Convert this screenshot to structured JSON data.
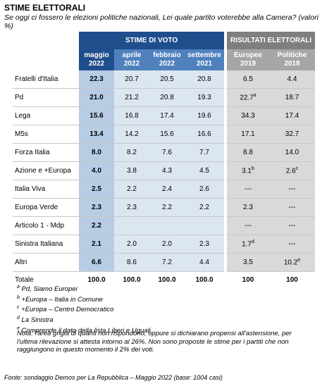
{
  "header": {
    "title": "STIME ELETTORALI",
    "subtitle": "Se oggi ci fossero le elezioni politiche nazionali, Lei quale partito voterebbe alla Camera? (valori %)"
  },
  "table": {
    "groups": [
      "STIME DI VOTO",
      "RISULTATI ELETTORALI"
    ],
    "columns": [
      {
        "month": "maggio",
        "year": "2022"
      },
      {
        "month": "aprile",
        "year": "2022"
      },
      {
        "month": "febbraio",
        "year": "2022"
      },
      {
        "month": "settembre",
        "year": "2021"
      },
      {
        "month": "Europee",
        "year": "2019"
      },
      {
        "month": "Politiche",
        "year": "2018"
      }
    ],
    "rows": [
      [
        "Fratelli d'Italia",
        "22.3",
        "20.7",
        "20.5",
        "20.8",
        "6.5",
        "4.4"
      ],
      [
        "Pd",
        "21.0",
        "21.2",
        "20.8",
        "19.3",
        {
          "text": "22.7",
          "sup": "a"
        },
        "18.7"
      ],
      [
        "Lega",
        "15.6",
        "16.8",
        "17.4",
        "19.6",
        "34.3",
        "17.4"
      ],
      [
        "M5s",
        "13.4",
        "14.2",
        "15.6",
        "16.6",
        "17.1",
        "32.7"
      ],
      [
        "Forza Italia",
        "8.0",
        "8.2",
        "7.6",
        "7.7",
        "8.8",
        "14.0"
      ],
      [
        "Azione e +Europa",
        "4.0",
        "3.8",
        "4.3",
        "4.5",
        {
          "text": "3.1",
          "sup": "b"
        },
        {
          "text": "2.6",
          "sup": "c"
        }
      ],
      [
        "Italia Viva",
        "2.5",
        "2.2",
        "2.4",
        "2.6",
        "---",
        "---"
      ],
      [
        "Europa Verde",
        "2.3",
        "2.3",
        "2.2",
        "2.2",
        "2.3",
        "---"
      ],
      [
        "Articolo 1 - Mdp",
        "2.2",
        "",
        "",
        "",
        "---",
        "---"
      ],
      [
        "Sinistra Italiana",
        "2.1",
        "2.0",
        "2.0",
        "2.3",
        {
          "text": "1.7",
          "sup": "d"
        },
        "---"
      ],
      [
        "Altri",
        "6.6",
        "8.6",
        "7.2",
        "4.4",
        "3.5",
        {
          "text": "10.2",
          "sup": "e"
        }
      ]
    ],
    "total": [
      "Totale",
      "100.0",
      "100.0",
      "100.0",
      "100.0",
      "100",
      "100"
    ]
  },
  "footnotes": [
    {
      "sup": "a",
      "text": "Pd, Siamo Europei"
    },
    {
      "sup": "b",
      "text": "+Europa – Italia in Comune"
    },
    {
      "sup": "c",
      "text": "+Europa – Centro Democratico"
    },
    {
      "sup": "d",
      "text": "La Sinistra"
    },
    {
      "sup": "e",
      "text": "Comprende il dato della lista Liberi e Uguali"
    }
  ],
  "note": "Nota: l'area grigia di quanti non rispondono, oppure si dichiarano propensi all'astensione, per l'ultima rilevazione si attesta intorno al 26%. Non sono proposte le stime per i partiti che non raggiungono in questo momento il 2% dei voti.",
  "source": "Fonte: sondaggio Demos per La Repubblica – Maggio 2022 (base: 1004 casi)"
}
